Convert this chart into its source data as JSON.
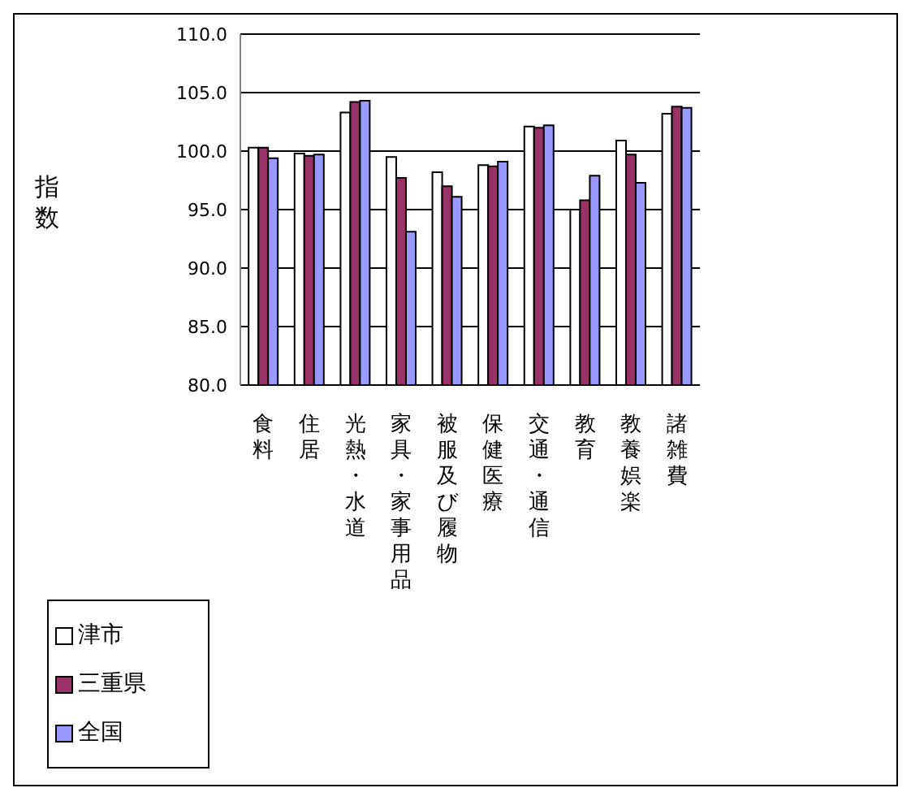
{
  "chart_data": {
    "type": "bar",
    "ylabel": "指数",
    "categories": [
      "食料",
      "住居",
      "光熱・水道",
      "家具・家事用品",
      "被服及び履物",
      "保健医療",
      "交通・通信",
      "教育",
      "教養娯楽",
      "諸雑費"
    ],
    "series": [
      {
        "name": "津市",
        "color": "#ffffff",
        "values": [
          100.3,
          99.8,
          103.3,
          99.5,
          98.2,
          98.8,
          102.1,
          95.0,
          100.9,
          103.2
        ]
      },
      {
        "name": "三重県",
        "color": "#993366",
        "values": [
          100.3,
          99.6,
          104.2,
          97.7,
          97.0,
          98.7,
          102.0,
          95.8,
          99.7,
          103.8
        ]
      },
      {
        "name": "全国",
        "color": "#9999ff",
        "values": [
          99.4,
          99.7,
          104.3,
          93.1,
          96.1,
          99.1,
          102.2,
          97.9,
          97.3,
          103.7
        ]
      }
    ],
    "ylim": [
      80,
      110
    ],
    "yticks": [
      {
        "value": 80,
        "label": "80.0"
      },
      {
        "value": 85,
        "label": "85.0"
      },
      {
        "value": 90,
        "label": "90.0"
      },
      {
        "value": 95,
        "label": "95.0"
      },
      {
        "value": 100,
        "label": "100.0"
      },
      {
        "value": 105,
        "label": "105.0"
      },
      {
        "value": 110,
        "label": "110.0"
      }
    ],
    "grid": "y",
    "legend": "bottom left"
  }
}
